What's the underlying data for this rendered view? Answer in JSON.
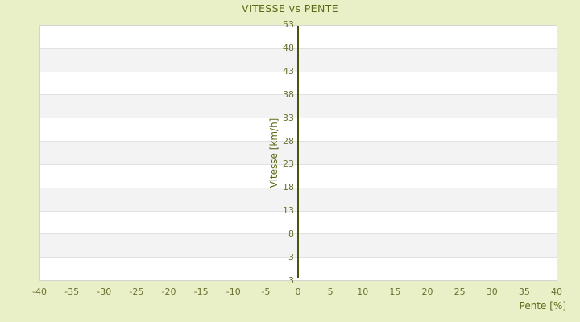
{
  "page": {
    "background_color": "#E9EFC6"
  },
  "chart_data": {
    "type": "scatter",
    "title": "VITESSE vs PENTE",
    "xlabel": "Pente [%]",
    "ylabel": "Vitesse [km/h]",
    "x_ticks": [
      "-40",
      "-35",
      "-30",
      "-25",
      "-20",
      "-15",
      "-10",
      "-5",
      "0",
      "5",
      "10",
      "15",
      "20",
      "25",
      "30",
      "35",
      "40"
    ],
    "y_ticks": [
      "53",
      "48",
      "43",
      "38",
      "33",
      "28",
      "23",
      "18",
      "13",
      "8",
      "3",
      "3"
    ],
    "xlim": [
      -40,
      40
    ],
    "ylim": [
      -2,
      53
    ],
    "series": [],
    "grid": "horizontal",
    "legend_position": "none",
    "notes": "plot area is empty (no data points rendered); dark olive vertical line marks x=0; bottom-most y tick label reads 3, duplicating the gridline label above it",
    "plot_style": {
      "band_colors": [
        "#FFFFFF",
        "#F3F3F3"
      ],
      "gridline_color": "#E1E1E1",
      "border_color": "#D4D4D4",
      "zero_axis_color": "#4A5412",
      "tick_text_color": "#6B7030",
      "title_text_color": "#5C6A16",
      "background_color": "#E9EFC6"
    }
  }
}
